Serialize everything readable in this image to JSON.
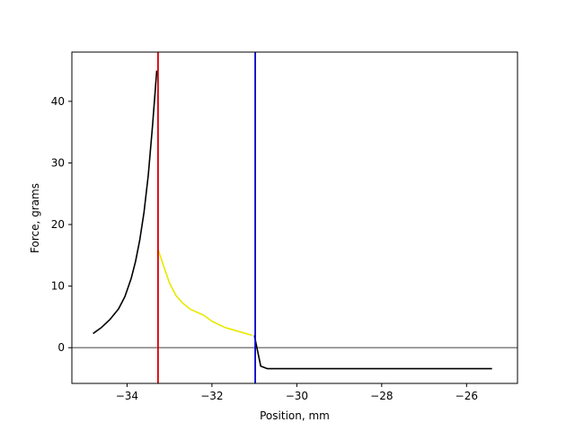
{
  "chart_data": {
    "type": "line",
    "title": "",
    "xlabel": "Position, mm",
    "ylabel": "Force, grams",
    "xlim": [
      -35.3,
      -24.8
    ],
    "ylim": [
      -5.8,
      48
    ],
    "xticks": [
      -34,
      -32,
      -30,
      -28,
      -26
    ],
    "xtick_labels": [
      "−34",
      "−32",
      "−30",
      "−28",
      "−26"
    ],
    "yticks": [
      0,
      10,
      20,
      30,
      40
    ],
    "ytick_labels": [
      "0",
      "10",
      "20",
      "30",
      "40"
    ],
    "grid": false,
    "legend": "none",
    "series": [
      {
        "color": "#000000",
        "points": [
          [
            -34.8,
            2.3
          ],
          [
            -34.6,
            3.3
          ],
          [
            -34.4,
            4.6
          ],
          [
            -34.2,
            6.3
          ],
          [
            -34.05,
            8.3
          ],
          [
            -33.9,
            11.3
          ],
          [
            -33.8,
            14.0
          ],
          [
            -33.7,
            17.5
          ],
          [
            -33.6,
            22.0
          ],
          [
            -33.5,
            28.0
          ],
          [
            -33.4,
            36.0
          ],
          [
            -33.3,
            45.0
          ]
        ]
      },
      {
        "color": "#e8e800",
        "points": [
          [
            -33.27,
            16.0
          ],
          [
            -33.15,
            13.5
          ],
          [
            -33.0,
            10.5
          ],
          [
            -32.85,
            8.5
          ],
          [
            -32.7,
            7.3
          ],
          [
            -32.5,
            6.2
          ],
          [
            -32.2,
            5.3
          ],
          [
            -32.0,
            4.3
          ],
          [
            -31.7,
            3.3
          ],
          [
            -31.4,
            2.7
          ],
          [
            -31.05,
            2.0
          ]
        ]
      },
      {
        "color": "#000000",
        "points": [
          [
            -31.0,
            2.0
          ],
          [
            -30.85,
            -3.0
          ],
          [
            -30.7,
            -3.4
          ],
          [
            -30.0,
            -3.4
          ],
          [
            -28.0,
            -3.4
          ],
          [
            -26.0,
            -3.4
          ],
          [
            -25.4,
            -3.4
          ]
        ]
      }
    ],
    "vertical_lines": [
      {
        "x": -33.27,
        "color": "#d40000"
      },
      {
        "x": -30.98,
        "color": "#0000cc"
      }
    ],
    "horizontal_lines": [
      {
        "y": 0,
        "color": "#808080"
      }
    ]
  }
}
